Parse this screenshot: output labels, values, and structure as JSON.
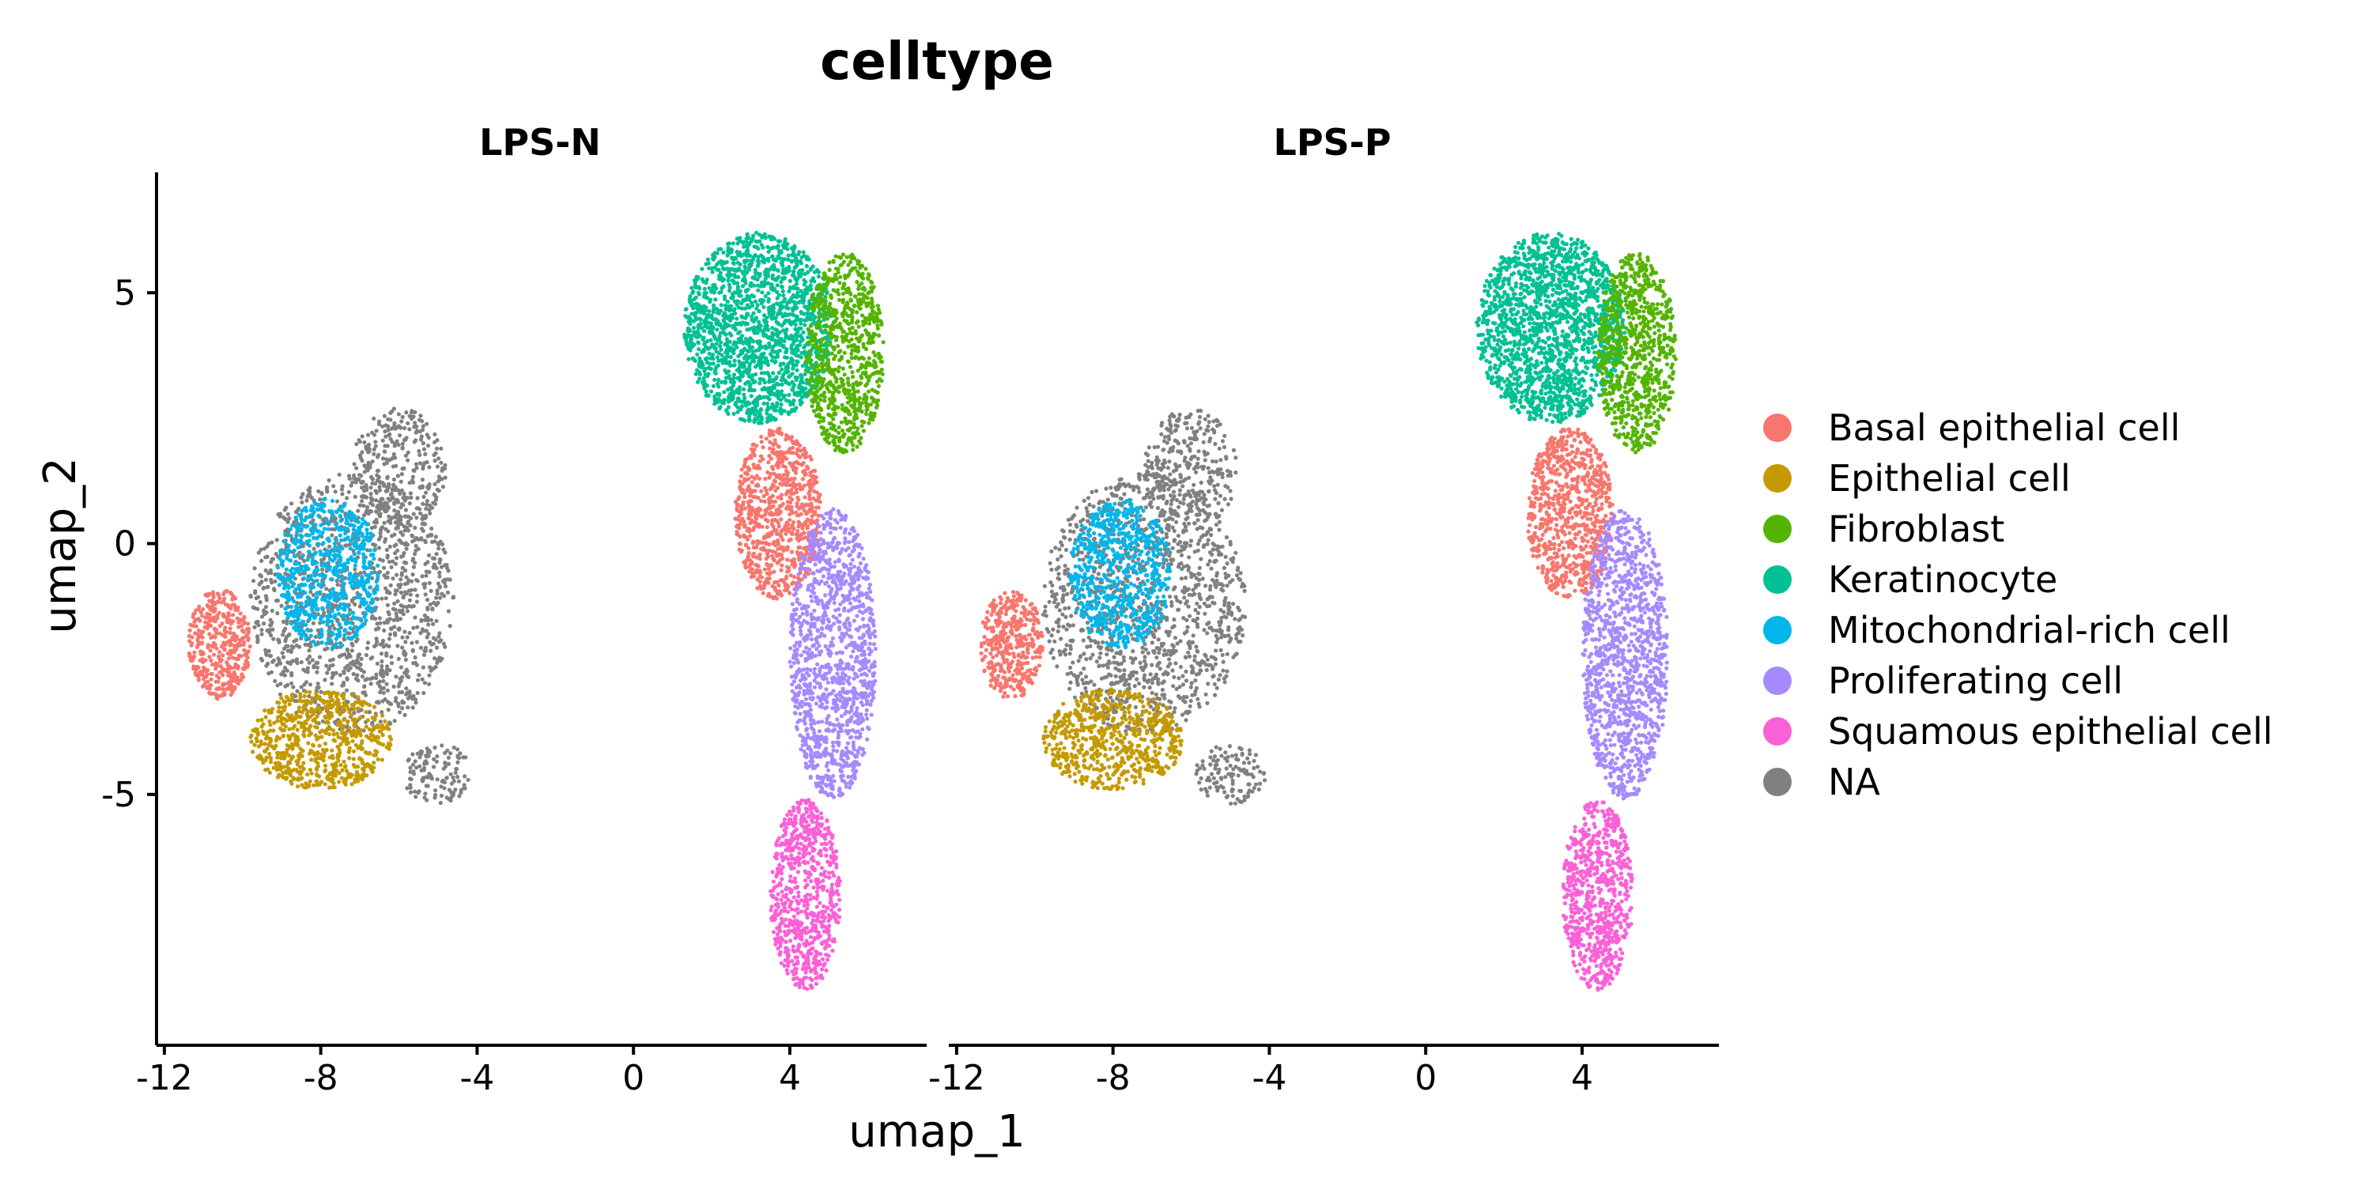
{
  "chart_data": {
    "type": "scatter",
    "title": "celltype",
    "xlabel": "umap_1",
    "ylabel": "umap_2",
    "facets": [
      "LPS-N",
      "LPS-P"
    ],
    "xlim": [
      -12.2,
      7.5
    ],
    "ylim": [
      -10.0,
      7.4
    ],
    "x_ticks": [
      -12,
      -8,
      -4,
      0,
      4
    ],
    "x_tick_labels": [
      "-12",
      "-8",
      "-4",
      "0",
      "4"
    ],
    "y_ticks": [
      5,
      0,
      -5
    ],
    "y_tick_labels": [
      "5",
      "0",
      "-5"
    ],
    "grid": false,
    "legend_position": "right",
    "series": [
      {
        "name": "Basal epithelial cell",
        "color": "#F8766D"
      },
      {
        "name": "Epithelial cell",
        "color": "#C49A00"
      },
      {
        "name": "Fibroblast",
        "color": "#53B400"
      },
      {
        "name": "Keratinocyte",
        "color": "#00C094"
      },
      {
        "name": "Mitochondrial-rich cell",
        "color": "#00B6EB"
      },
      {
        "name": "Proliferating cell",
        "color": "#A58AFF"
      },
      {
        "name": "Squamous epithelial cell",
        "color": "#FB61D7"
      },
      {
        "name": "NA",
        "color": "#808080"
      }
    ],
    "clusters": [
      {
        "series": "NA",
        "cx": -7.2,
        "cy": -1.2,
        "rx": 2.6,
        "ry": 2.6,
        "n": 1300
      },
      {
        "series": "NA",
        "cx": -6.0,
        "cy": 1.5,
        "rx": 1.2,
        "ry": 1.2,
        "n": 300
      },
      {
        "series": "NA",
        "cx": -5.0,
        "cy": -4.6,
        "rx": 0.9,
        "ry": 0.6,
        "n": 120
      },
      {
        "series": "Basal epithelial cell",
        "cx": -10.6,
        "cy": -2.0,
        "rx": 0.8,
        "ry": 1.1,
        "n": 400
      },
      {
        "series": "Mitochondrial-rich cell",
        "cx": -7.8,
        "cy": -0.6,
        "rx": 1.3,
        "ry": 1.5,
        "n": 650
      },
      {
        "series": "Epithelial cell",
        "cx": -8.0,
        "cy": -3.9,
        "rx": 1.8,
        "ry": 1.0,
        "n": 650
      },
      {
        "series": "Keratinocyte",
        "cx": 3.2,
        "cy": 4.3,
        "rx": 1.9,
        "ry": 1.9,
        "n": 1700
      },
      {
        "series": "Fibroblast",
        "cx": 5.4,
        "cy": 3.8,
        "rx": 1.0,
        "ry": 2.0,
        "n": 800
      },
      {
        "series": "Basal epithelial cell",
        "cx": 3.7,
        "cy": 0.6,
        "rx": 1.1,
        "ry": 1.7,
        "n": 800
      },
      {
        "series": "Proliferating cell",
        "cx": 5.1,
        "cy": -2.2,
        "rx": 1.1,
        "ry": 2.9,
        "n": 1200
      },
      {
        "series": "Squamous epithelial cell",
        "cx": 4.4,
        "cy": -7.0,
        "rx": 0.9,
        "ry": 1.9,
        "n": 750
      }
    ]
  }
}
